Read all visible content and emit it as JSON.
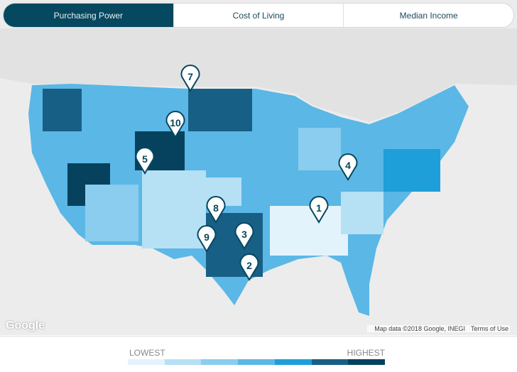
{
  "tabs": [
    {
      "label": "Purchasing Power",
      "active": true
    },
    {
      "label": "Cost of Living",
      "active": false
    },
    {
      "label": "Median Income",
      "active": false
    }
  ],
  "map": {
    "attribution": "Map data ©2018 Google, INEGI",
    "terms": "Terms of Use",
    "logo": "Google",
    "markers": [
      {
        "label": "1"
      },
      {
        "label": "2"
      },
      {
        "label": "3"
      },
      {
        "label": "4"
      },
      {
        "label": "5"
      },
      {
        "label": "7"
      },
      {
        "label": "8"
      },
      {
        "label": "9"
      },
      {
        "label": "10"
      }
    ]
  },
  "legend": {
    "low": "LOWEST",
    "high": "HIGHEST",
    "colors": [
      "#e3f3fb",
      "#b6e0f4",
      "#8acdee",
      "#5bb7e6",
      "#1e9fd9",
      "#185f86",
      "#06425e"
    ]
  }
}
